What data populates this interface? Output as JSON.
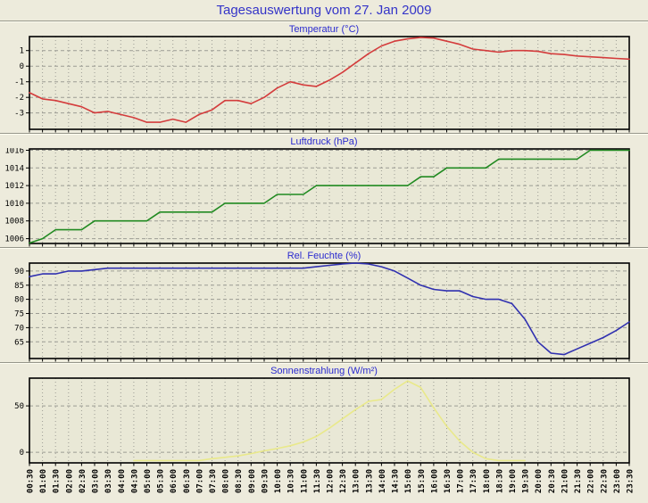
{
  "page": {
    "title": "Tagesauswertung vom 27. Jan 2009"
  },
  "colors": {
    "title": "#3434c8",
    "chart_title": "#2b2bcf",
    "axis": "#000000",
    "grid": "#9c9c94",
    "background": "#edebdc",
    "plot_background": "#e9e8d6"
  },
  "x_axis": {
    "labels": [
      "00:30",
      "01:00",
      "01:30",
      "02:00",
      "02:30",
      "03:00",
      "03:30",
      "04:00",
      "04:30",
      "05:00",
      "05:30",
      "06:00",
      "06:30",
      "07:00",
      "07:30",
      "08:00",
      "08:30",
      "09:00",
      "09:30",
      "10:00",
      "10:30",
      "11:00",
      "11:30",
      "12:00",
      "12:30",
      "13:00",
      "13:30",
      "14:00",
      "14:30",
      "15:00",
      "15:30",
      "16:00",
      "16:30",
      "17:00",
      "17:30",
      "18:00",
      "18:30",
      "19:00",
      "19:30",
      "20:00",
      "20:30",
      "21:00",
      "21:30",
      "22:00",
      "22:30",
      "23:00",
      "23:30"
    ]
  },
  "chart_data": [
    {
      "type": "line",
      "title": "Temperatur (°C)",
      "line_color": "#d43c3c",
      "ymin": -4.05,
      "ymax": 1.9,
      "yticks": [
        1,
        0,
        -1,
        -2,
        -3
      ],
      "grid": true,
      "values": [
        -1.7,
        -2.1,
        -2.2,
        -2.4,
        -2.6,
        -3.0,
        -2.9,
        -3.1,
        -3.3,
        -3.6,
        -3.6,
        -3.4,
        -3.6,
        -3.1,
        -2.8,
        -2.2,
        -2.2,
        -2.4,
        -2.0,
        -1.4,
        -1.0,
        -1.2,
        -1.3,
        -0.9,
        -0.4,
        0.2,
        0.8,
        1.3,
        1.6,
        1.75,
        1.85,
        1.8,
        1.6,
        1.4,
        1.1,
        1.0,
        0.9,
        1.0,
        1.0,
        0.95,
        0.8,
        0.75,
        0.65,
        0.6,
        0.55,
        0.5,
        0.45
      ]
    },
    {
      "type": "line",
      "title": "Luftdruck (hPa)",
      "line_color": "#218a21",
      "ymin": 1005.45,
      "ymax": 1016.15,
      "yticks": [
        1016,
        1014,
        1012,
        1010,
        1008,
        1006
      ],
      "grid": true,
      "values": [
        1005.5,
        1006,
        1007,
        1007,
        1007,
        1008,
        1008,
        1008,
        1008,
        1008,
        1009,
        1009,
        1009,
        1009,
        1009,
        1010,
        1010,
        1010,
        1010,
        1011,
        1011,
        1011,
        1012,
        1012,
        1012,
        1012,
        1012,
        1012,
        1012,
        1012,
        1013,
        1013,
        1014,
        1014,
        1014,
        1014,
        1015,
        1015,
        1015,
        1015,
        1015,
        1015,
        1015,
        1016,
        1016,
        1016,
        1016
      ]
    },
    {
      "type": "line",
      "title": "Rel. Feuchte (%)",
      "line_color": "#3030b0",
      "ymin": 59.1,
      "ymax": 92.8,
      "yticks": [
        90,
        85,
        80,
        75,
        70,
        65
      ],
      "grid": true,
      "values": [
        88,
        89,
        89,
        90,
        90,
        90.5,
        91,
        91,
        91,
        91,
        91,
        91,
        91,
        91,
        91,
        91,
        91,
        91,
        91,
        91,
        91,
        91,
        91.5,
        92,
        92.5,
        93,
        92.5,
        91.5,
        90,
        87.5,
        85,
        83.5,
        83,
        83,
        81,
        80,
        80,
        78.5,
        73,
        65,
        61,
        60.5,
        62.5,
        64.5,
        66.5,
        69,
        72
      ]
    },
    {
      "type": "line",
      "title": "Sonnenstrahlung (W/m²)",
      "line_color": "#e9e98a",
      "ymin": -11.5,
      "ymax": 80,
      "yticks": [
        50,
        0
      ],
      "grid": true,
      "values": [
        null,
        null,
        null,
        null,
        null,
        null,
        null,
        null,
        -9,
        -9,
        -9,
        -9,
        -9,
        -9,
        -7,
        -5.5,
        -4,
        -1.5,
        1.5,
        4,
        7,
        11,
        17,
        26,
        36,
        46,
        55,
        57,
        68,
        77,
        70,
        48,
        28,
        12,
        0,
        -7,
        -9,
        -9,
        -9,
        null,
        null,
        null,
        null,
        null,
        null,
        null,
        null
      ]
    }
  ]
}
